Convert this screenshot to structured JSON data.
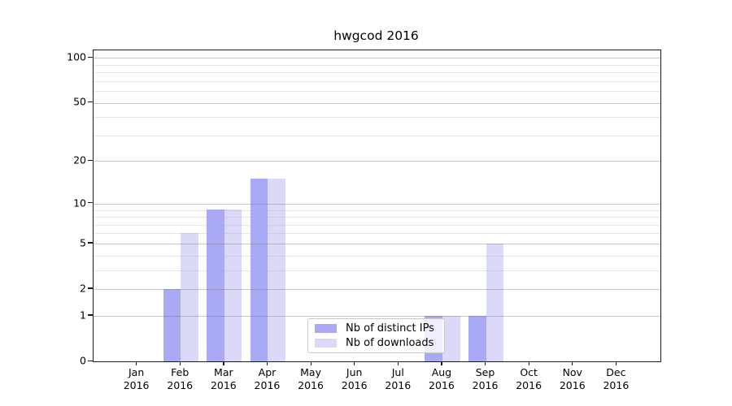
{
  "title": "hwgcod 2016",
  "chart_data": {
    "type": "bar",
    "title": "hwgcod 2016",
    "categories": [
      "Jan",
      "Feb",
      "Mar",
      "Apr",
      "May",
      "Jun",
      "Jul",
      "Aug",
      "Sep",
      "Oct",
      "Nov",
      "Dec"
    ],
    "year": "2016",
    "series": [
      {
        "name": "Nb of distinct IPs",
        "color": "#a9a9f4",
        "values": [
          0,
          2,
          9,
          15,
          0,
          0,
          0,
          1,
          1,
          0,
          0,
          0
        ]
      },
      {
        "name": "Nb of downloads",
        "color": "#dadaf8",
        "values": [
          0,
          6,
          9,
          15,
          0,
          0,
          0,
          1,
          5,
          0,
          0,
          0
        ]
      }
    ],
    "xlabel": "",
    "ylabel": "",
    "yscale": "log10(1+v)",
    "ylim": [
      0,
      112
    ],
    "y_ticks": [
      0,
      1,
      2,
      5,
      10,
      20,
      50,
      100
    ],
    "y_minor_gridlines": [
      3,
      4,
      6,
      7,
      8,
      9,
      30,
      40,
      60,
      70,
      80,
      90
    ],
    "grid": true,
    "legend_position": "lower-center-left-of-plot"
  },
  "legend": {
    "items": [
      {
        "label": "Nb of distinct IPs"
      },
      {
        "label": "Nb of downloads"
      }
    ]
  },
  "colors": {
    "distinct_ips": "#a9a9f4",
    "downloads": "#dadaf8",
    "spine": "#1a1a1a",
    "background": "#ffffff"
  }
}
